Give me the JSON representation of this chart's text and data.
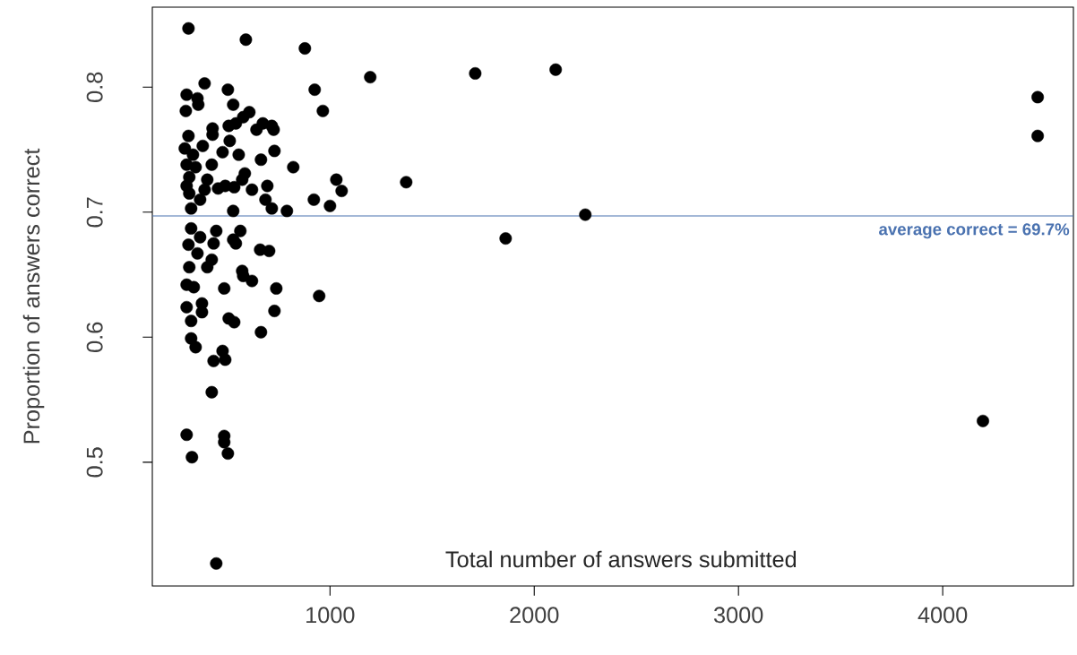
{
  "chart_data": {
    "type": "scatter",
    "xlabel": "Total number of answers submitted",
    "ylabel": "Proportion of answers correct",
    "xlim": [
      130,
      4640
    ],
    "ylim": [
      0.401,
      0.864
    ],
    "xticks": [
      1000,
      2000,
      3000,
      4000
    ],
    "yticks": [
      0.5,
      0.6,
      0.7,
      0.8
    ],
    "marker": "circle",
    "ref_lines": [
      {
        "axis": "y",
        "value": 0.697,
        "label": "average correct = 69.7%",
        "color": "#4a72b0"
      }
    ],
    "series": [
      {
        "color": "#000000",
        "x": [
          307,
          588,
          877,
          386,
          500,
          298,
          351,
          355,
          294,
          526,
          605,
          575,
          539,
          504,
          671,
          715,
          640,
          724,
          425,
          425,
          307,
          509,
          377,
          289,
          474,
          553,
          728,
          662,
          329,
          298,
          421,
          342,
          820,
          583,
          311,
          399,
          570,
          487,
          531,
          693,
          298,
          618,
          386,
          452,
          311,
          364,
          684,
          921,
          715,
          526,
          789,
          1000,
          1031,
          320,
          925,
          965,
          320,
          443,
          561,
          364,
          307,
          430,
          526,
          539,
          351,
          658,
          702,
          421,
          311,
          399,
          570,
          575,
          618,
          298,
          333,
          482,
          737,
          947,
          298,
          373,
          373,
          320,
          504,
          531,
          728,
          662,
          320,
          342,
          474,
          430,
          487,
          421,
          298,
          482,
          482,
          500,
          324,
          443,
          1197,
          1711,
          2105,
          1057,
          1373,
          1860,
          2250,
          4465,
          4465,
          4197
        ],
        "values": [
          0.847,
          0.838,
          0.831,
          0.803,
          0.798,
          0.794,
          0.791,
          0.786,
          0.781,
          0.786,
          0.78,
          0.776,
          0.771,
          0.769,
          0.771,
          0.769,
          0.766,
          0.766,
          0.767,
          0.762,
          0.761,
          0.757,
          0.753,
          0.751,
          0.748,
          0.746,
          0.749,
          0.742,
          0.746,
          0.738,
          0.738,
          0.736,
          0.736,
          0.731,
          0.728,
          0.726,
          0.726,
          0.721,
          0.72,
          0.721,
          0.721,
          0.718,
          0.718,
          0.719,
          0.715,
          0.71,
          0.71,
          0.71,
          0.703,
          0.701,
          0.701,
          0.705,
          0.726,
          0.703,
          0.798,
          0.781,
          0.687,
          0.685,
          0.685,
          0.68,
          0.674,
          0.675,
          0.678,
          0.675,
          0.667,
          0.67,
          0.669,
          0.662,
          0.656,
          0.656,
          0.653,
          0.649,
          0.645,
          0.642,
          0.64,
          0.639,
          0.639,
          0.633,
          0.624,
          0.627,
          0.62,
          0.613,
          0.615,
          0.612,
          0.621,
          0.604,
          0.599,
          0.592,
          0.589,
          0.581,
          0.582,
          0.556,
          0.522,
          0.521,
          0.516,
          0.507,
          0.504,
          0.419,
          0.808,
          0.811,
          0.814,
          0.717,
          0.724,
          0.679,
          0.698,
          0.792,
          0.761,
          0.533
        ]
      }
    ]
  }
}
